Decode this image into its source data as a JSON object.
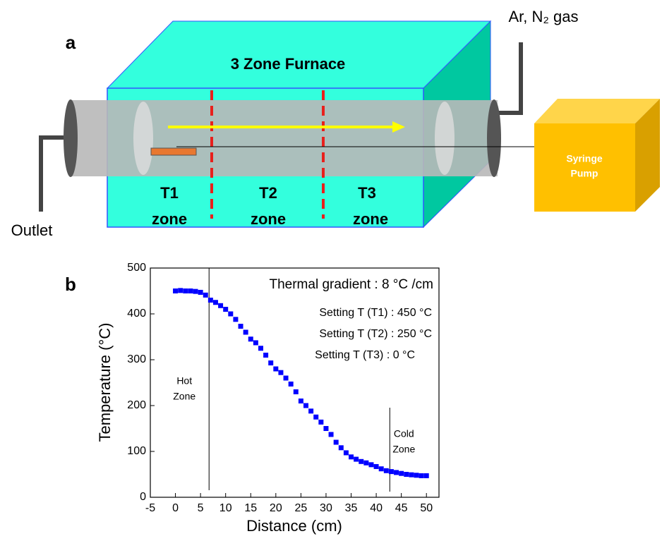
{
  "diagram": {
    "panel_a": "a",
    "furnace_title": "3 Zone Furnace",
    "zones": [
      {
        "name": "T1",
        "word": "zone"
      },
      {
        "name": "T2",
        "word": "zone"
      },
      {
        "name": "T3",
        "word": "zone"
      }
    ],
    "gas_label": "Ar, N₂ gas",
    "outlet_label": "Outlet",
    "pump_label": [
      "Syringe",
      "Pump"
    ]
  },
  "chart_data": {
    "type": "scatter",
    "panel": "b",
    "x_label": "Distance (cm)",
    "y_label": "Temperature (°C)",
    "annotations": [
      "Thermal gradient : 8 °C /cm",
      "Setting T (T1) : 450 °C",
      "Setting T (T2) : 250 °C",
      "Setting T (T3) : 0 °C"
    ],
    "regions": [
      {
        "label": [
          "Hot",
          "Zone"
        ],
        "x": 6.7
      },
      {
        "label": [
          "Cold",
          "Zone"
        ],
        "x": 42.7
      }
    ],
    "xlim": [
      -5,
      52.5
    ],
    "ylim": [
      0,
      500
    ],
    "xticks": [
      -5,
      0,
      5,
      10,
      15,
      20,
      25,
      30,
      35,
      40,
      45,
      50
    ],
    "yticks": [
      0,
      100,
      200,
      300,
      400,
      500
    ],
    "series": [
      {
        "color": "#0000ff",
        "x": [
          0,
          1,
          2,
          3,
          4,
          5,
          6,
          7,
          8,
          9,
          10,
          11,
          12,
          13,
          14,
          15,
          16,
          17,
          18,
          19,
          20,
          21,
          22,
          23,
          24,
          25,
          26,
          27,
          28,
          29,
          30,
          31,
          32,
          33,
          34,
          35,
          36,
          37,
          38,
          39,
          40,
          41,
          42,
          43,
          44,
          45,
          46,
          47,
          48,
          49,
          50
        ],
        "values": [
          450,
          451,
          450,
          450,
          449,
          447,
          441,
          430,
          425,
          418,
          410,
          400,
          388,
          373,
          360,
          345,
          337,
          325,
          310,
          293,
          280,
          272,
          260,
          247,
          230,
          210,
          200,
          188,
          175,
          164,
          150,
          137,
          120,
          108,
          97,
          88,
          83,
          78,
          75,
          71,
          67,
          62,
          58,
          56,
          54,
          52,
          50,
          49,
          48,
          47,
          47
        ]
      }
    ]
  }
}
